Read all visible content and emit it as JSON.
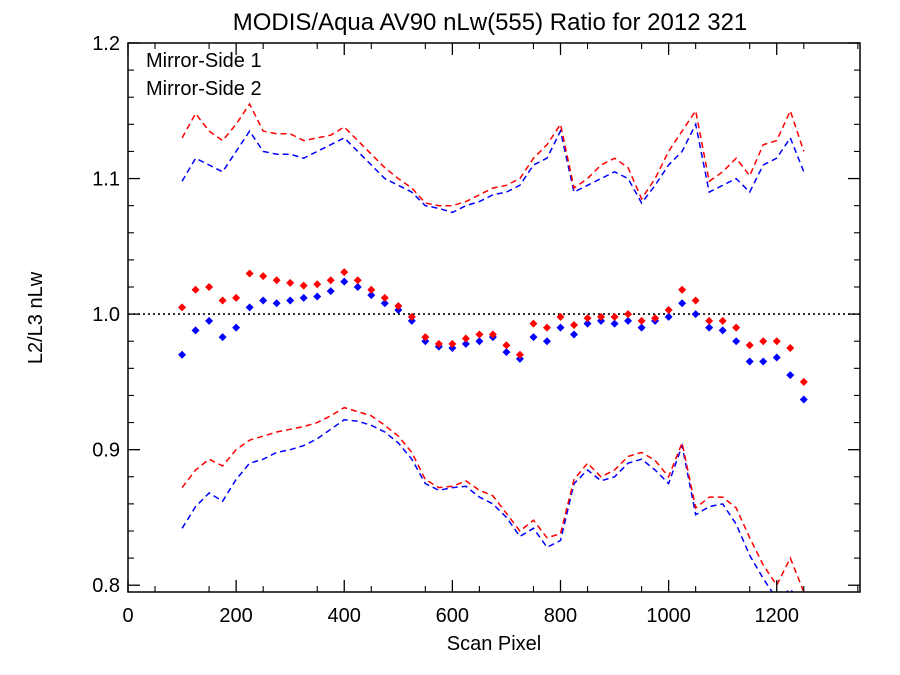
{
  "chart_data": {
    "type": "scatter",
    "title": "MODIS/Aqua AV90 nLw(555) Ratio for 2012 321",
    "xlabel": "Scan Pixel",
    "ylabel": "L2/L3 nLw",
    "xlim": [
      0,
      1354
    ],
    "ylim": [
      0.795,
      1.2
    ],
    "xticks": [
      0,
      200,
      400,
      600,
      800,
      1000,
      1200
    ],
    "yticks": [
      0.8,
      0.9,
      1.0,
      1.1,
      1.2
    ],
    "xtick_labels": [
      "0",
      "200",
      "400",
      "600",
      "800",
      "1000",
      "1200"
    ],
    "ytick_labels": [
      "0.8",
      "0.9",
      "1.0",
      "1.1",
      "1.2"
    ],
    "reference_line": 1.0,
    "legend_position": "top-left",
    "series": [
      {
        "name": "Mirror-Side 1",
        "color": "#0000ff",
        "points_x": [
          100,
          125,
          150,
          175,
          200,
          225,
          250,
          275,
          300,
          325,
          350,
          375,
          400,
          425,
          450,
          475,
          500,
          525,
          550,
          575,
          600,
          625,
          650,
          675,
          700,
          725,
          750,
          775,
          800,
          825,
          850,
          875,
          900,
          925,
          950,
          975,
          1000,
          1025,
          1050,
          1075,
          1100,
          1125,
          1150,
          1175,
          1200,
          1225,
          1250
        ],
        "points_y": [
          0.97,
          0.988,
          0.995,
          0.983,
          0.99,
          1.005,
          1.01,
          1.008,
          1.01,
          1.012,
          1.013,
          1.017,
          1.024,
          1.02,
          1.014,
          1.008,
          1.003,
          0.995,
          0.98,
          0.976,
          0.975,
          0.978,
          0.98,
          0.983,
          0.972,
          0.967,
          0.983,
          0.98,
          0.99,
          0.985,
          0.993,
          0.995,
          0.993,
          0.995,
          0.99,
          0.995,
          0.998,
          1.008,
          1.0,
          0.99,
          0.988,
          0.98,
          0.965,
          0.965,
          0.968,
          0.955,
          0.937
        ],
        "upper_x": [
          100,
          125,
          150,
          175,
          200,
          225,
          250,
          275,
          300,
          325,
          350,
          375,
          400,
          425,
          450,
          475,
          500,
          525,
          550,
          575,
          600,
          625,
          650,
          675,
          700,
          725,
          750,
          775,
          800,
          825,
          850,
          875,
          900,
          925,
          950,
          975,
          1000,
          1025,
          1050,
          1075,
          1100,
          1125,
          1150,
          1175,
          1200,
          1225,
          1250
        ],
        "upper_y": [
          1.098,
          1.115,
          1.11,
          1.105,
          1.12,
          1.135,
          1.12,
          1.118,
          1.118,
          1.115,
          1.12,
          1.125,
          1.13,
          1.12,
          1.11,
          1.1,
          1.095,
          1.09,
          1.08,
          1.078,
          1.075,
          1.08,
          1.083,
          1.088,
          1.09,
          1.095,
          1.11,
          1.115,
          1.135,
          1.09,
          1.095,
          1.1,
          1.105,
          1.1,
          1.082,
          1.095,
          1.11,
          1.12,
          1.14,
          1.09,
          1.095,
          1.1,
          1.09,
          1.11,
          1.115,
          1.13,
          1.105
        ],
        "lower_x": [
          100,
          125,
          150,
          175,
          200,
          225,
          250,
          275,
          300,
          325,
          350,
          375,
          400,
          425,
          450,
          475,
          500,
          525,
          550,
          575,
          600,
          625,
          650,
          675,
          700,
          725,
          750,
          775,
          800,
          825,
          850,
          875,
          900,
          925,
          950,
          975,
          1000,
          1025,
          1050,
          1075,
          1100,
          1125,
          1150,
          1175,
          1200,
          1225,
          1250
        ],
        "lower_y": [
          0.842,
          0.858,
          0.868,
          0.862,
          0.878,
          0.89,
          0.893,
          0.898,
          0.9,
          0.903,
          0.908,
          0.915,
          0.922,
          0.921,
          0.918,
          0.913,
          0.905,
          0.893,
          0.875,
          0.87,
          0.872,
          0.873,
          0.865,
          0.86,
          0.85,
          0.836,
          0.842,
          0.828,
          0.833,
          0.875,
          0.885,
          0.877,
          0.88,
          0.89,
          0.893,
          0.885,
          0.875,
          0.903,
          0.852,
          0.858,
          0.86,
          0.845,
          0.822,
          0.805,
          0.79,
          0.797,
          0.785
        ]
      },
      {
        "name": "Mirror-Side 2",
        "color": "#ff0000",
        "points_x": [
          100,
          125,
          150,
          175,
          200,
          225,
          250,
          275,
          300,
          325,
          350,
          375,
          400,
          425,
          450,
          475,
          500,
          525,
          550,
          575,
          600,
          625,
          650,
          675,
          700,
          725,
          750,
          775,
          800,
          825,
          850,
          875,
          900,
          925,
          950,
          975,
          1000,
          1025,
          1050,
          1075,
          1100,
          1125,
          1150,
          1175,
          1200,
          1225,
          1250
        ],
        "points_y": [
          1.005,
          1.018,
          1.02,
          1.01,
          1.012,
          1.03,
          1.028,
          1.025,
          1.023,
          1.021,
          1.022,
          1.025,
          1.031,
          1.025,
          1.018,
          1.012,
          1.006,
          0.998,
          0.983,
          0.978,
          0.978,
          0.982,
          0.985,
          0.985,
          0.977,
          0.97,
          0.993,
          0.99,
          0.998,
          0.992,
          0.997,
          0.998,
          0.998,
          1.0,
          0.995,
          0.997,
          1.003,
          1.018,
          1.01,
          0.995,
          0.995,
          0.99,
          0.977,
          0.98,
          0.98,
          0.975,
          0.95
        ],
        "upper_x": [
          100,
          125,
          150,
          175,
          200,
          225,
          250,
          275,
          300,
          325,
          350,
          375,
          400,
          425,
          450,
          475,
          500,
          525,
          550,
          575,
          600,
          625,
          650,
          675,
          700,
          725,
          750,
          775,
          800,
          825,
          850,
          875,
          900,
          925,
          950,
          975,
          1000,
          1025,
          1050,
          1075,
          1100,
          1125,
          1150,
          1175,
          1200,
          1225,
          1250
        ],
        "upper_y": [
          1.13,
          1.148,
          1.135,
          1.128,
          1.14,
          1.155,
          1.135,
          1.133,
          1.133,
          1.128,
          1.13,
          1.132,
          1.138,
          1.128,
          1.118,
          1.108,
          1.1,
          1.093,
          1.082,
          1.08,
          1.08,
          1.083,
          1.088,
          1.093,
          1.095,
          1.1,
          1.115,
          1.125,
          1.14,
          1.093,
          1.1,
          1.11,
          1.115,
          1.108,
          1.085,
          1.1,
          1.12,
          1.135,
          1.15,
          1.098,
          1.105,
          1.115,
          1.102,
          1.125,
          1.128,
          1.15,
          1.12
        ],
        "lower_x": [
          100,
          125,
          150,
          175,
          200,
          225,
          250,
          275,
          300,
          325,
          350,
          375,
          400,
          425,
          450,
          475,
          500,
          525,
          550,
          575,
          600,
          625,
          650,
          675,
          700,
          725,
          750,
          775,
          800,
          825,
          850,
          875,
          900,
          925,
          950,
          975,
          1000,
          1025,
          1050,
          1075,
          1100,
          1125,
          1150,
          1175,
          1200,
          1225,
          1250
        ],
        "lower_y": [
          0.872,
          0.885,
          0.893,
          0.888,
          0.9,
          0.907,
          0.91,
          0.913,
          0.915,
          0.917,
          0.92,
          0.925,
          0.931,
          0.928,
          0.925,
          0.918,
          0.91,
          0.898,
          0.878,
          0.872,
          0.873,
          0.877,
          0.87,
          0.866,
          0.853,
          0.84,
          0.848,
          0.835,
          0.838,
          0.878,
          0.89,
          0.88,
          0.885,
          0.895,
          0.898,
          0.892,
          0.88,
          0.905,
          0.857,
          0.865,
          0.865,
          0.857,
          0.835,
          0.815,
          0.8,
          0.82,
          0.795
        ]
      }
    ]
  }
}
